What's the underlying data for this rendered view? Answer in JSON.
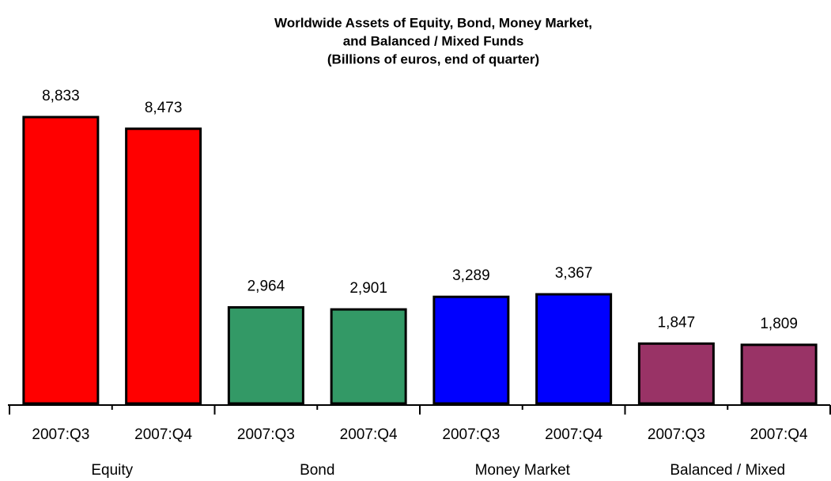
{
  "chart_data": {
    "type": "bar",
    "title": [
      "Worldwide Assets of Equity, Bond, Money Market,",
      "and Balanced / Mixed Funds"
    ],
    "subtitle": "(Billions of euros, end of quarter)",
    "series": [
      {
        "name": "Equity",
        "color": "#ff0000",
        "categories": [
          "2007:Q3",
          "2007:Q4"
        ],
        "values": [
          8833,
          8473
        ],
        "value_labels": [
          "8,833",
          "8,473"
        ]
      },
      {
        "name": "Bond",
        "color": "#339966",
        "categories": [
          "2007:Q3",
          "2007:Q4"
        ],
        "values": [
          2964,
          2901
        ],
        "value_labels": [
          "2,964",
          "2,901"
        ]
      },
      {
        "name": "Money Market",
        "color": "#0000ff",
        "categories": [
          "2007:Q3",
          "2007:Q4"
        ],
        "values": [
          3289,
          3367
        ],
        "value_labels": [
          "3,289",
          "3,367"
        ]
      },
      {
        "name": "Balanced / Mixed",
        "color": "#993366",
        "categories": [
          "2007:Q3",
          "2007:Q4"
        ],
        "values": [
          1847,
          1809
        ],
        "value_labels": [
          "1,847",
          "1,809"
        ]
      }
    ]
  }
}
